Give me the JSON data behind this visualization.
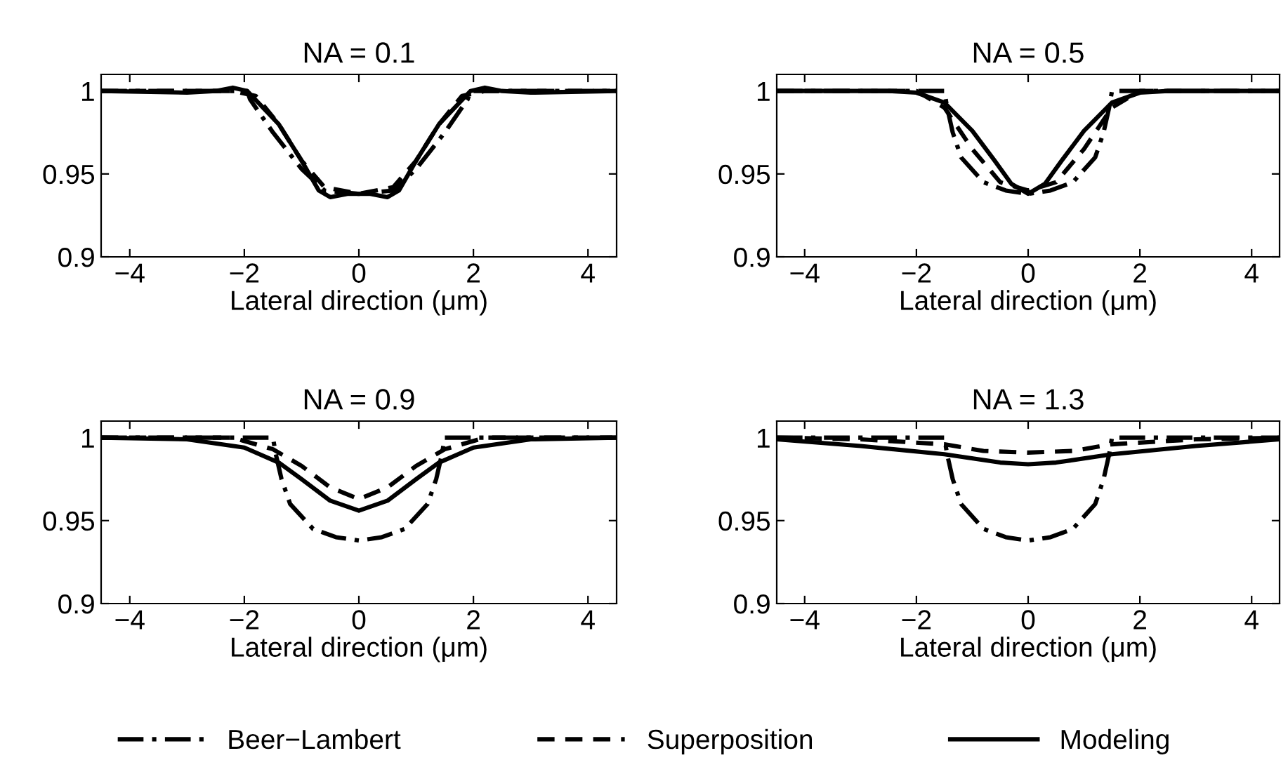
{
  "chart_data": [
    {
      "type": "line",
      "title": "NA = 0.1",
      "xlabel": "Lateral direction (μm)",
      "xlim": [
        -4.5,
        4.5
      ],
      "ylim": [
        0.9,
        1.01
      ],
      "xticks": [
        -4,
        -2,
        0,
        2,
        4
      ],
      "yticks": [
        0.9,
        0.95,
        1
      ],
      "legend": "bottom",
      "series": [
        {
          "name": "Beer−Lambert",
          "color": "#000000",
          "line_style": "dashdot",
          "x": [
            -4.5,
            -1.95,
            -1.9,
            -1.5,
            -1.0,
            -0.6,
            0,
            0.6,
            1.0,
            1.5,
            1.9,
            1.95,
            4.5
          ],
          "values": [
            1,
            1,
            0.995,
            0.975,
            0.953,
            0.94,
            0.938,
            0.94,
            0.953,
            0.975,
            0.995,
            1,
            1
          ]
        },
        {
          "name": "Superposition",
          "color": "#000000",
          "line_style": "dashed",
          "x": [
            -4.5,
            -2.2,
            -1.8,
            -1.4,
            -1.0,
            -0.6,
            0,
            0.6,
            1.0,
            1.4,
            1.8,
            2.2,
            4.5
          ],
          "values": [
            1,
            1,
            0.997,
            0.98,
            0.958,
            0.942,
            0.938,
            0.942,
            0.958,
            0.98,
            0.997,
            1,
            1
          ]
        },
        {
          "name": "Modeling",
          "color": "#000000",
          "line_style": "solid",
          "x": [
            -4.5,
            -3.0,
            -2.5,
            -2.2,
            -1.95,
            -1.4,
            -1.0,
            -0.7,
            -0.5,
            -0.2,
            0,
            0.2,
            0.5,
            0.7,
            1.0,
            1.4,
            1.95,
            2.2,
            2.5,
            3.0,
            4.5
          ],
          "values": [
            1,
            0.999,
            1.0,
            1.002,
            1.0,
            0.98,
            0.958,
            0.94,
            0.936,
            0.938,
            0.938,
            0.938,
            0.936,
            0.94,
            0.958,
            0.98,
            1.0,
            1.002,
            1.0,
            0.999,
            1
          ]
        }
      ]
    },
    {
      "type": "line",
      "title": "NA = 0.9",
      "xlabel": "Lateral direction (μm)",
      "xlim": [
        -4.5,
        4.5
      ],
      "ylim": [
        0.9,
        1.01
      ],
      "xticks": [
        -4,
        -2,
        0,
        2,
        4
      ],
      "yticks": [
        0.9,
        0.95,
        1
      ],
      "series": [
        {
          "color": "#000000",
          "line_style": "dashdot",
          "x": [
            -4.5,
            -1.5,
            -1.45,
            -1.35,
            -1.2,
            -0.8,
            -0.4,
            0,
            0.4,
            0.8,
            1.2,
            1.35,
            1.45,
            1.5,
            4.5
          ],
          "values": [
            1,
            1,
            0.99,
            0.975,
            0.96,
            0.945,
            0.94,
            0.938,
            0.94,
            0.945,
            0.96,
            0.975,
            0.99,
            1,
            1
          ]
        },
        {
          "color": "#000000",
          "line_style": "dashed",
          "x": [
            -4.5,
            -2.2,
            -1.5,
            -1.0,
            -0.5,
            0,
            0.5,
            1.0,
            1.5,
            2.2,
            4.5
          ],
          "values": [
            1,
            1,
            0.993,
            0.983,
            0.97,
            0.963,
            0.97,
            0.983,
            0.993,
            1,
            1
          ]
        },
        {
          "color": "#000000",
          "line_style": "solid",
          "x": [
            -4.5,
            -3.0,
            -2.0,
            -1.4,
            -1.0,
            -0.5,
            0,
            0.5,
            1.0,
            1.4,
            2.0,
            3.0,
            4.5
          ],
          "values": [
            1,
            0.999,
            0.994,
            0.985,
            0.975,
            0.962,
            0.956,
            0.962,
            0.975,
            0.985,
            0.994,
            0.999,
            1
          ]
        }
      ]
    },
    {
      "type": "line",
      "title": "NA = 0.5",
      "xlabel": "Lateral direction (μm)",
      "xlim": [
        -4.5,
        4.5
      ],
      "ylim": [
        0.9,
        1.01
      ],
      "xticks": [
        -4,
        -2,
        0,
        2,
        4
      ],
      "yticks": [
        0.9,
        0.95,
        1
      ],
      "series": [
        {
          "color": "#000000",
          "line_style": "dashdot",
          "x": [
            -4.5,
            -1.5,
            -1.45,
            -1.35,
            -1.2,
            -0.8,
            -0.4,
            0,
            0.4,
            0.8,
            1.2,
            1.35,
            1.45,
            1.5,
            4.5
          ],
          "values": [
            1,
            1,
            0.99,
            0.975,
            0.96,
            0.945,
            0.94,
            0.938,
            0.94,
            0.945,
            0.96,
            0.975,
            0.99,
            1,
            1
          ]
        },
        {
          "color": "#000000",
          "line_style": "dashed",
          "x": [
            -4.5,
            -2.0,
            -1.5,
            -1.0,
            -0.5,
            0,
            0.5,
            1.0,
            1.5,
            2.0,
            4.5
          ],
          "values": [
            1,
            1,
            0.99,
            0.965,
            0.945,
            0.94,
            0.945,
            0.965,
            0.99,
            1,
            1
          ]
        },
        {
          "color": "#000000",
          "line_style": "solid",
          "x": [
            -4.5,
            -2.5,
            -2.0,
            -1.5,
            -1.0,
            -0.6,
            -0.3,
            0,
            0.3,
            0.6,
            1.0,
            1.5,
            2.0,
            2.5,
            4.5
          ],
          "values": [
            1,
            1,
            0.999,
            0.993,
            0.976,
            0.958,
            0.944,
            0.938,
            0.944,
            0.958,
            0.976,
            0.993,
            0.999,
            1,
            1
          ]
        }
      ]
    },
    {
      "type": "line",
      "title": "NA = 1.3",
      "xlabel": "Lateral direction (μm)",
      "xlim": [
        -4.5,
        4.5
      ],
      "ylim": [
        0.9,
        1.01
      ],
      "xticks": [
        -4,
        -2,
        0,
        2,
        4
      ],
      "yticks": [
        0.9,
        0.95,
        1
      ],
      "series": [
        {
          "color": "#000000",
          "line_style": "dashdot",
          "x": [
            -4.5,
            -1.5,
            -1.45,
            -1.35,
            -1.2,
            -0.8,
            -0.4,
            0,
            0.4,
            0.8,
            1.2,
            1.35,
            1.45,
            1.5,
            4.5
          ],
          "values": [
            1,
            1,
            0.99,
            0.975,
            0.96,
            0.945,
            0.94,
            0.938,
            0.94,
            0.945,
            0.96,
            0.975,
            0.99,
            1,
            1
          ]
        },
        {
          "color": "#000000",
          "line_style": "dashed",
          "x": [
            -4.5,
            -3.0,
            -1.5,
            -0.8,
            0,
            0.8,
            1.5,
            3.0,
            4.5
          ],
          "values": [
            1,
            0.999,
            0.996,
            0.992,
            0.991,
            0.992,
            0.996,
            0.999,
            1
          ]
        },
        {
          "color": "#000000",
          "line_style": "solid",
          "x": [
            -4.5,
            -3.0,
            -1.5,
            -0.5,
            0,
            0.5,
            1.5,
            3.0,
            4.5
          ],
          "values": [
            0.999,
            0.995,
            0.99,
            0.985,
            0.984,
            0.985,
            0.99,
            0.995,
            0.999
          ]
        }
      ]
    }
  ]
}
